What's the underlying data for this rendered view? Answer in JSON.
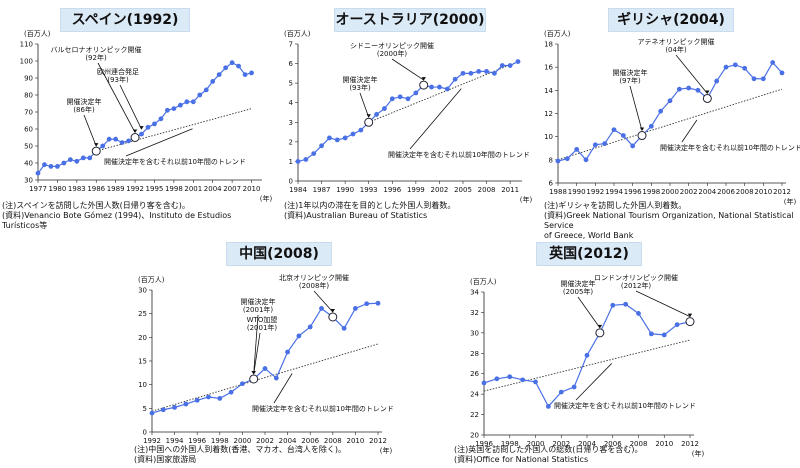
{
  "chart_data": [
    {
      "type": "line",
      "title": "スペイン(1992)",
      "ylabel": "(百万人)",
      "xunit": "(年)",
      "ylim": [
        30,
        110
      ],
      "xlim": [
        1977,
        2011
      ],
      "yticks": [
        "30",
        "40",
        "50",
        "60",
        "70",
        "80",
        "90",
        "100",
        "110"
      ],
      "yticks_num": [
        30,
        40,
        50,
        60,
        70,
        80,
        90,
        100,
        110
      ],
      "xticks": [
        "1977",
        "1980",
        "1983",
        "1986",
        "1989",
        "1992",
        "1995",
        "1998",
        "2001",
        "2004",
        "2007",
        "2010"
      ],
      "xticks_num": [
        1977,
        1980,
        1983,
        1986,
        1989,
        1992,
        1995,
        1998,
        2001,
        2004,
        2007,
        2010
      ],
      "x": [
        1977,
        1978,
        1979,
        1980,
        1981,
        1982,
        1983,
        1984,
        1985,
        1986,
        1987,
        1988,
        1989,
        1990,
        1991,
        1992,
        1993,
        1994,
        1995,
        1996,
        1997,
        1998,
        1999,
        2000,
        2001,
        2002,
        2003,
        2004,
        2005,
        2006,
        2007,
        2008,
        2009,
        2010
      ],
      "values": [
        34,
        39,
        38,
        38,
        40,
        42,
        41,
        43,
        43,
        47,
        50,
        54,
        54,
        52,
        53,
        55,
        57,
        61,
        63,
        66,
        71,
        72,
        74,
        76,
        76,
        80,
        83,
        88,
        92,
        96,
        99,
        97,
        92,
        93
      ],
      "trend": {
        "x": [
          1986,
          2010
        ],
        "y": [
          47,
          72
        ]
      },
      "markers": [
        {
          "x": 1986,
          "y": 47
        },
        {
          "x": 1992,
          "y": 55
        }
      ],
      "annotations": [
        {
          "text": "バルセロナオリンピック開催\n(92年)",
          "point": [
            1992,
            55
          ]
        },
        {
          "text": "欧州連合発足\n(93年)",
          "point": [
            1993,
            57
          ]
        },
        {
          "text": "開催決定年\n(86年)",
          "point": [
            1986,
            47
          ]
        }
      ],
      "trend_label": "開催決定年を含むそれ以前10年間のトレンド",
      "notes": "(注)スペインを訪問した外国人数(日帰り客を含む)。\n(資料)Venancio Bote Gómez (1994)、Instituto de Estudios Turísticos等"
    },
    {
      "type": "line",
      "title": "オーストラリア(2000)",
      "ylabel": "(百万人)",
      "xunit": "(年)",
      "ylim": [
        0,
        7
      ],
      "xlim": [
        1984,
        2012
      ],
      "yticks": [
        "0",
        "1",
        "2",
        "3",
        "4",
        "5",
        "6",
        "7"
      ],
      "yticks_num": [
        0,
        1,
        2,
        3,
        4,
        5,
        6,
        7
      ],
      "xticks": [
        "1984",
        "1987",
        "1990",
        "1993",
        "1996",
        "1999",
        "2002",
        "2005",
        "2008",
        "2011"
      ],
      "xticks_num": [
        1984,
        1987,
        1990,
        1993,
        1996,
        1999,
        2002,
        2005,
        2008,
        2011
      ],
      "x": [
        1984,
        1985,
        1986,
        1987,
        1988,
        1989,
        1990,
        1991,
        1992,
        1993,
        1994,
        1995,
        1996,
        1997,
        1998,
        1999,
        2000,
        2001,
        2002,
        2003,
        2004,
        2005,
        2006,
        2007,
        2008,
        2009,
        2010,
        2011,
        2012
      ],
      "values": [
        1.0,
        1.1,
        1.4,
        1.8,
        2.2,
        2.1,
        2.2,
        2.4,
        2.6,
        3.0,
        3.4,
        3.7,
        4.2,
        4.3,
        4.2,
        4.5,
        4.9,
        4.8,
        4.8,
        4.7,
        5.2,
        5.5,
        5.5,
        5.6,
        5.6,
        5.5,
        5.9,
        5.9,
        6.1
      ],
      "trend": {
        "x": [
          1993,
          2012
        ],
        "y": [
          3.0,
          6.1
        ]
      },
      "markers": [
        {
          "x": 1993,
          "y": 3.0
        },
        {
          "x": 2000,
          "y": 4.9
        }
      ],
      "annotations": [
        {
          "text": "シドニーオリンピック開催\n(2000年)",
          "point": [
            2000,
            4.9
          ]
        },
        {
          "text": "開催決定年\n(93年)",
          "point": [
            1993,
            3.0
          ]
        }
      ],
      "trend_label": "開催決定年を含むそれ以前10年間のトレンド",
      "notes": "(注)1年以内の滞在を目的とした外国人到着数。\n(資料)Australian Bureau of Statistics"
    },
    {
      "type": "line",
      "title": "ギリシャ(2004)",
      "ylabel": "(百万人)",
      "xunit": "(年)",
      "ylim": [
        6,
        18
      ],
      "xlim": [
        1988,
        2012
      ],
      "yticks": [
        "6",
        "8",
        "10",
        "12",
        "14",
        "16",
        "18"
      ],
      "yticks_num": [
        6,
        8,
        10,
        12,
        14,
        16,
        18
      ],
      "xticks": [
        "1988",
        "1990",
        "1992",
        "1994",
        "1996",
        "1998",
        "2000",
        "2002",
        "2004",
        "2006",
        "2008",
        "2010",
        "2012"
      ],
      "xticks_num": [
        1988,
        1990,
        1992,
        1994,
        1996,
        1998,
        2000,
        2002,
        2004,
        2006,
        2008,
        2010,
        2012
      ],
      "x": [
        1988,
        1989,
        1990,
        1991,
        1992,
        1993,
        1994,
        1995,
        1996,
        1997,
        1998,
        1999,
        2000,
        2001,
        2002,
        2003,
        2004,
        2005,
        2006,
        2007,
        2008,
        2009,
        2010,
        2011,
        2012
      ],
      "values": [
        7.9,
        8.1,
        8.9,
        8.0,
        9.3,
        9.4,
        10.6,
        10.1,
        9.2,
        10.1,
        10.9,
        12.2,
        13.1,
        14.1,
        14.2,
        14.0,
        13.3,
        14.8,
        16.0,
        16.2,
        15.9,
        15.0,
        15.0,
        16.4,
        15.5
      ],
      "trend": {
        "x": [
          1988,
          2012
        ],
        "y": [
          8.0,
          14.1
        ]
      },
      "markers": [
        {
          "x": 1997,
          "y": 10.1
        },
        {
          "x": 2004,
          "y": 13.3
        }
      ],
      "annotations": [
        {
          "text": "アテネオリンピック開催\n(04年)",
          "point": [
            2004,
            13.3
          ]
        },
        {
          "text": "開催決定年\n(97年)",
          "point": [
            1997,
            10.1
          ]
        }
      ],
      "trend_label": "開催決定年を含むそれ以前10年間のトレンド",
      "notes": "(注)ギリシャを訪問した外国人到着数。\n(資料)Greek National Tourism Organization, National Statistical Service\n         of Greece, World Bank"
    },
    {
      "type": "line",
      "title": "中国(2008)",
      "ylabel": "(百万人)",
      "xunit": "(年)",
      "ylim": [
        0,
        30
      ],
      "xlim": [
        1992,
        2012
      ],
      "yticks": [
        "0",
        "5",
        "10",
        "15",
        "20",
        "25",
        "30"
      ],
      "yticks_num": [
        0,
        5,
        10,
        15,
        20,
        25,
        30
      ],
      "xticks": [
        "1992",
        "1994",
        "1996",
        "1998",
        "2000",
        "2002",
        "2004",
        "2006",
        "2008",
        "2010",
        "2012"
      ],
      "xticks_num": [
        1992,
        1994,
        1996,
        1998,
        2000,
        2002,
        2004,
        2006,
        2008,
        2010,
        2012
      ],
      "x": [
        1992,
        1993,
        1994,
        1995,
        1996,
        1997,
        1998,
        1999,
        2000,
        2001,
        2002,
        2003,
        2004,
        2005,
        2006,
        2007,
        2008,
        2009,
        2010,
        2011,
        2012
      ],
      "values": [
        4.0,
        4.7,
        5.2,
        5.9,
        6.7,
        7.4,
        7.1,
        8.4,
        10.2,
        11.2,
        13.4,
        11.4,
        16.9,
        20.3,
        22.2,
        26.1,
        24.3,
        21.9,
        26.1,
        27.1,
        27.2
      ],
      "trend": {
        "x": [
          1992,
          2012
        ],
        "y": [
          4.4,
          18.6
        ]
      },
      "markers": [
        {
          "x": 2001,
          "y": 11.2
        },
        {
          "x": 2008,
          "y": 24.3
        }
      ],
      "annotations": [
        {
          "text": "北京オリンピック開催\n(2008年)",
          "point": [
            2008,
            24.3
          ]
        },
        {
          "text": "開催決定年\n(2001年)",
          "point": [
            2001,
            11.2
          ]
        },
        {
          "text": "WTO加盟\n(2001年)",
          "point": [
            2001,
            11.2
          ]
        }
      ],
      "trend_label": "開催決定年を含むそれ以前10年間のトレンド",
      "notes": "(注)中国への外国人到着数(香港、マカオ、台湾人を除く)。\n(資料)国家旅游局"
    },
    {
      "type": "line",
      "title": "英国(2012)",
      "ylabel": "(百万人)",
      "xunit": "(年)",
      "ylim": [
        20,
        34
      ],
      "xlim": [
        1996,
        2012
      ],
      "yticks": [
        "20",
        "22",
        "24",
        "26",
        "28",
        "30",
        "32",
        "34"
      ],
      "yticks_num": [
        20,
        22,
        24,
        26,
        28,
        30,
        32,
        34
      ],
      "xticks": [
        "1996",
        "1998",
        "2000",
        "2002",
        "2004",
        "2006",
        "2008",
        "2010",
        "2012"
      ],
      "xticks_num": [
        1996,
        1998,
        2000,
        2002,
        2004,
        2006,
        2008,
        2010,
        2012
      ],
      "x": [
        1996,
        1997,
        1998,
        1999,
        2000,
        2001,
        2002,
        2003,
        2004,
        2005,
        2006,
        2007,
        2008,
        2009,
        2010,
        2011,
        2012
      ],
      "values": [
        25.1,
        25.5,
        25.7,
        25.4,
        25.2,
        22.8,
        24.2,
        24.7,
        27.8,
        30.0,
        32.7,
        32.8,
        31.9,
        29.9,
        29.8,
        30.8,
        31.1
      ],
      "trend": {
        "x": [
          1996,
          2012
        ],
        "y": [
          24.3,
          29.3
        ]
      },
      "markers": [
        {
          "x": 2005,
          "y": 30.0
        },
        {
          "x": 2012,
          "y": 31.1
        }
      ],
      "annotations": [
        {
          "text": "ロンドンオリンピック開催\n(2012年)",
          "point": [
            2012,
            31.1
          ]
        },
        {
          "text": "開催決定年\n(2005年)",
          "point": [
            2005,
            30.0
          ]
        }
      ],
      "trend_label": "開催決定年を含むそれ以前10年間のトレンド",
      "notes": "(注)英国を訪問した外国人の総数(日帰り客を含む)。\n(資料)Office for National Statistics"
    }
  ]
}
